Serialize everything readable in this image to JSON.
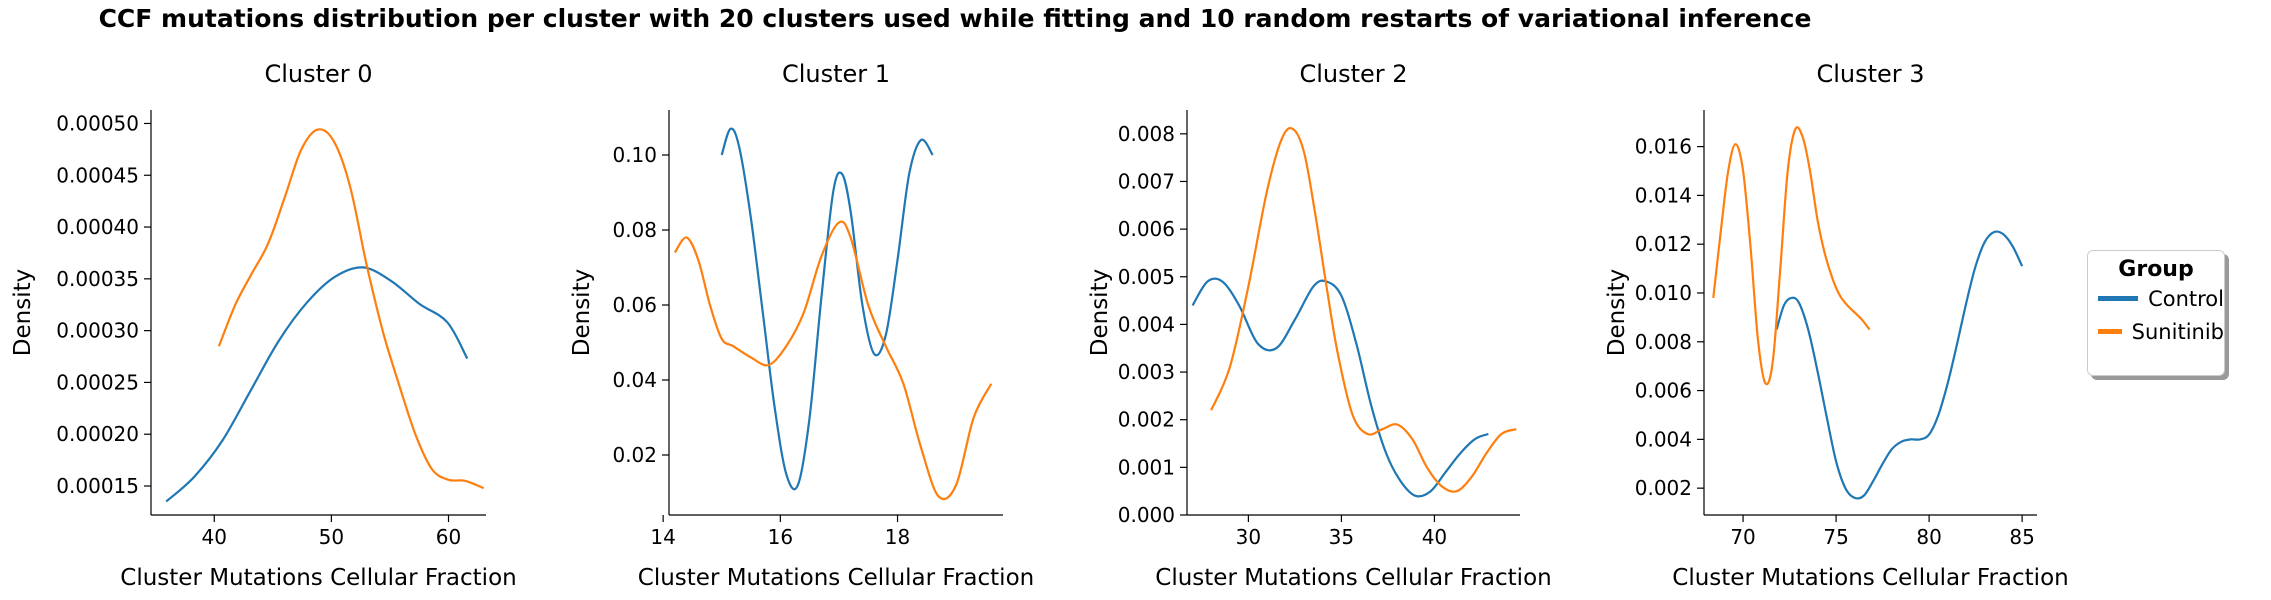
{
  "suptitle": "CCF mutations distribution per cluster with 20 clusters used while fitting and 10 random restarts of variational inference",
  "legend": {
    "title": "Group",
    "placement": "center-right",
    "entries": [
      {
        "label": "Control",
        "color": "#1f77b4"
      },
      {
        "label": "Sunitinib",
        "color": "#ff7f0e"
      }
    ]
  },
  "chart_data": [
    {
      "type": "line",
      "title": "Cluster 0",
      "xlabel": "Cluster Mutations Cellular Fraction",
      "ylabel": "Density",
      "xlim": [
        34.6,
        63.2
      ],
      "ylim": [
        0.000122,
        0.000513
      ],
      "xticks": [
        40,
        50,
        60
      ],
      "xtick_labels": [
        "40",
        "50",
        "60"
      ],
      "yticks": [
        0.00015,
        0.0002,
        0.00025,
        0.0003,
        0.00035,
        0.0004,
        0.00045,
        0.0005
      ],
      "ytick_labels": [
        "0.00015",
        "0.00020",
        "0.00025",
        "0.00030",
        "0.00035",
        "0.00040",
        "0.00045",
        "0.00050"
      ],
      "series": [
        {
          "name": "Control",
          "color": "#1f77b4",
          "x": [
            35.9,
            38.3,
            40.7,
            43.1,
            45.5,
            47.9,
            50.3,
            52.7,
            55.1,
            57.5,
            59.9,
            61.6
          ],
          "y": [
            0.000135,
            0.000159,
            0.000194,
            0.000242,
            0.00029,
            0.000327,
            0.000352,
            0.000361,
            0.000348,
            0.000326,
            0.000308,
            0.000273
          ]
        },
        {
          "name": "Sunitinib",
          "color": "#ff7f0e",
          "x": [
            40.4,
            41.8,
            43.2,
            44.6,
            46.0,
            47.4,
            48.8,
            50.2,
            51.6,
            53.0,
            54.4,
            55.8,
            57.2,
            58.6,
            60.0,
            61.4,
            63.0
          ],
          "y": [
            0.000285,
            0.000325,
            0.000355,
            0.000384,
            0.000428,
            0.000474,
            0.000494,
            0.000483,
            0.000439,
            0.000364,
            0.000299,
            0.000247,
            0.000199,
            0.000166,
            0.000156,
            0.000155,
            0.000148
          ]
        }
      ]
    },
    {
      "type": "line",
      "title": "Cluster 1",
      "xlabel": "Cluster Mutations Cellular Fraction",
      "ylabel": "Density",
      "xlim": [
        14.1,
        19.8
      ],
      "ylim": [
        0.004,
        0.112
      ],
      "xticks": [
        14,
        16,
        18
      ],
      "xtick_labels": [
        "14",
        "16",
        "18"
      ],
      "yticks": [
        0.02,
        0.04,
        0.06,
        0.08,
        0.1
      ],
      "ytick_labels": [
        "0.02",
        "0.04",
        "0.06",
        "0.08",
        "0.10"
      ],
      "series": [
        {
          "name": "Control",
          "color": "#1f77b4",
          "x": [
            15.0,
            15.15,
            15.3,
            15.5,
            15.7,
            15.9,
            16.1,
            16.3,
            16.5,
            16.7,
            16.9,
            17.05,
            17.2,
            17.4,
            17.6,
            17.8,
            18.0,
            18.2,
            18.4,
            18.6
          ],
          "y": [
            0.1,
            0.107,
            0.102,
            0.083,
            0.058,
            0.033,
            0.015,
            0.012,
            0.03,
            0.062,
            0.09,
            0.095,
            0.085,
            0.06,
            0.047,
            0.052,
            0.072,
            0.095,
            0.104,
            0.1
          ]
        },
        {
          "name": "Sunitinib",
          "color": "#ff7f0e",
          "x": [
            14.2,
            14.4,
            14.6,
            14.8,
            15.0,
            15.2,
            15.5,
            15.8,
            16.1,
            16.4,
            16.7,
            17.0,
            17.2,
            17.5,
            17.8,
            18.1,
            18.4,
            18.7,
            19.0,
            19.3,
            19.6
          ],
          "y": [
            0.074,
            0.078,
            0.072,
            0.06,
            0.051,
            0.049,
            0.046,
            0.044,
            0.049,
            0.058,
            0.073,
            0.082,
            0.078,
            0.06,
            0.049,
            0.039,
            0.022,
            0.009,
            0.012,
            0.03,
            0.039
          ]
        }
      ]
    },
    {
      "type": "line",
      "title": "Cluster 2",
      "xlabel": "Cluster Mutations Cellular Fraction",
      "ylabel": "Density",
      "xlim": [
        26.7,
        44.6
      ],
      "ylim": [
        0,
        0.0085
      ],
      "xticks": [
        30,
        35,
        40
      ],
      "xtick_labels": [
        "30",
        "35",
        "40"
      ],
      "yticks": [
        0,
        0.001,
        0.002,
        0.003,
        0.004,
        0.005,
        0.006,
        0.007,
        0.008
      ],
      "ytick_labels": [
        "0.000",
        "0.001",
        "0.002",
        "0.003",
        "0.004",
        "0.005",
        "0.006",
        "0.007",
        "0.008"
      ],
      "series": [
        {
          "name": "Control",
          "color": "#1f77b4",
          "x": [
            27.0,
            27.8,
            28.6,
            29.5,
            30.5,
            31.5,
            32.5,
            33.5,
            34.2,
            35.0,
            35.8,
            36.6,
            37.4,
            38.2,
            39.0,
            39.8,
            40.6,
            41.4,
            42.2,
            42.9
          ],
          "y": [
            0.0044,
            0.0049,
            0.0049,
            0.0044,
            0.0036,
            0.0035,
            0.0041,
            0.0048,
            0.0049,
            0.0046,
            0.0036,
            0.0023,
            0.0013,
            0.0007,
            0.0004,
            0.0005,
            0.0009,
            0.0013,
            0.0016,
            0.0017
          ]
        },
        {
          "name": "Sunitinib",
          "color": "#ff7f0e",
          "x": [
            28.0,
            29.0,
            30.0,
            31.0,
            31.8,
            32.4,
            33.0,
            33.6,
            34.2,
            34.8,
            35.6,
            36.4,
            37.2,
            38.0,
            38.8,
            39.6,
            40.4,
            41.2,
            42.0,
            42.8,
            43.6,
            44.4
          ],
          "y": [
            0.0022,
            0.0031,
            0.0048,
            0.0068,
            0.0079,
            0.0081,
            0.0076,
            0.0063,
            0.0048,
            0.0034,
            0.0021,
            0.0017,
            0.0018,
            0.0019,
            0.0016,
            0.001,
            0.0006,
            0.0005,
            0.0008,
            0.0013,
            0.0017,
            0.0018
          ]
        }
      ]
    },
    {
      "type": "line",
      "title": "Cluster 3",
      "xlabel": "Cluster Mutations Cellular Fraction",
      "ylabel": "Density",
      "xlim": [
        67.9,
        85.8
      ],
      "ylim": [
        0.0009,
        0.0175
      ],
      "xticks": [
        70,
        75,
        80,
        85
      ],
      "xtick_labels": [
        "70",
        "75",
        "80",
        "85"
      ],
      "yticks": [
        0.002,
        0.004,
        0.006,
        0.008,
        0.01,
        0.012,
        0.014,
        0.016
      ],
      "ytick_labels": [
        "0.002",
        "0.004",
        "0.006",
        "0.008",
        "0.010",
        "0.012",
        "0.014",
        "0.016"
      ],
      "series": [
        {
          "name": "Control",
          "color": "#1f77b4",
          "x": [
            71.8,
            72.2,
            72.6,
            73.0,
            73.5,
            74.0,
            74.5,
            75.0,
            75.5,
            76.0,
            76.5,
            77.0,
            77.5,
            78.0,
            78.5,
            79.0,
            79.5,
            80.0,
            80.5,
            81.0,
            81.5,
            82.0,
            82.5,
            83.0,
            83.5,
            84.0,
            84.5,
            85.0
          ],
          "y": [
            0.0085,
            0.0095,
            0.0098,
            0.0096,
            0.0085,
            0.0068,
            0.0049,
            0.0031,
            0.002,
            0.0016,
            0.0017,
            0.0023,
            0.003,
            0.0036,
            0.0039,
            0.004,
            0.004,
            0.0042,
            0.005,
            0.0063,
            0.0079,
            0.0096,
            0.0111,
            0.0121,
            0.0125,
            0.0124,
            0.0119,
            0.0111
          ]
        },
        {
          "name": "Sunitinib",
          "color": "#ff7f0e",
          "x": [
            68.4,
            68.8,
            69.2,
            69.6,
            70.0,
            70.4,
            70.8,
            71.2,
            71.6,
            72.0,
            72.4,
            72.8,
            73.2,
            73.6,
            74.0,
            74.4,
            74.8,
            75.2,
            75.6,
            76.0,
            76.4,
            76.8
          ],
          "y": [
            0.0098,
            0.0125,
            0.015,
            0.0161,
            0.015,
            0.0119,
            0.0081,
            0.0063,
            0.0072,
            0.011,
            0.015,
            0.0167,
            0.0164,
            0.015,
            0.013,
            0.0116,
            0.0106,
            0.0099,
            0.0095,
            0.0092,
            0.0089,
            0.0085
          ]
        }
      ]
    }
  ]
}
